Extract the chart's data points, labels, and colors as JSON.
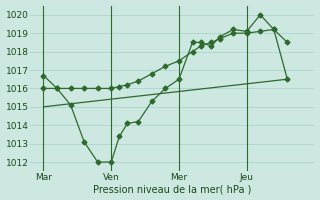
{
  "bg_color": "#cce8e0",
  "grid_color": "#aacccc",
  "line_color": "#2d6a2d",
  "xlabel": "Pression niveau de la mer( hPa )",
  "ylim": [
    1011.5,
    1020.5
  ],
  "yticks": [
    1012,
    1013,
    1014,
    1015,
    1016,
    1017,
    1018,
    1019,
    1020
  ],
  "xtick_labels": [
    "Mar",
    "Ven",
    "Mer",
    "Jeu"
  ],
  "xtick_positions": [
    0.5,
    3.0,
    5.5,
    8.0
  ],
  "xlim": [
    0.0,
    10.5
  ],
  "vlines_x": [
    0.5,
    3.0,
    5.5,
    8.0
  ],
  "series1_x": [
    0.5,
    1.0,
    1.5,
    2.0,
    2.5,
    3.0,
    3.3,
    3.6,
    4.0,
    4.5,
    5.0,
    5.5,
    6.0,
    6.3,
    6.7,
    7.0,
    7.5,
    8.0,
    8.5,
    9.0,
    9.5
  ],
  "series1_y": [
    1016.7,
    1016.0,
    1015.1,
    1013.1,
    1012.0,
    1012.0,
    1013.4,
    1014.1,
    1014.2,
    1015.3,
    1016.0,
    1016.5,
    1018.5,
    1018.5,
    1018.3,
    1018.8,
    1019.2,
    1019.1,
    1020.0,
    1019.2,
    1018.5
  ],
  "series2_x": [
    0.5,
    1.0,
    1.5,
    2.0,
    2.5,
    3.0,
    3.3,
    3.6,
    4.0,
    4.5,
    5.0,
    5.5,
    6.0,
    6.3,
    6.7,
    7.0,
    7.5,
    8.0,
    8.5,
    9.0,
    9.5
  ],
  "series2_y": [
    1016.0,
    1016.0,
    1016.0,
    1016.0,
    1016.0,
    1016.0,
    1016.1,
    1016.2,
    1016.4,
    1016.8,
    1017.2,
    1017.5,
    1018.0,
    1018.3,
    1018.5,
    1018.7,
    1019.0,
    1019.0,
    1019.1,
    1019.2,
    1016.5
  ],
  "series3_x": [
    0.5,
    9.5
  ],
  "series3_y": [
    1015.0,
    1016.5
  ]
}
